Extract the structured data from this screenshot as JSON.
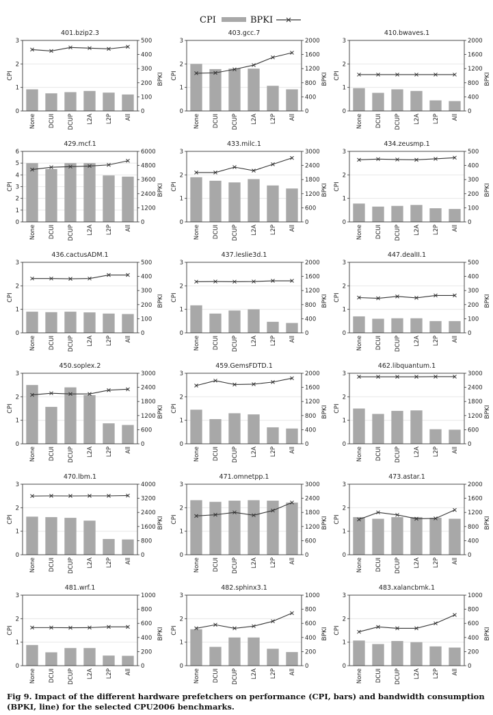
{
  "legend": {
    "cpi_label": "CPI",
    "bpki_label": "BPKI",
    "bar_color": "#a8a8a8",
    "line_color": "#333333"
  },
  "caption": {
    "label": "Fig 9.",
    "text": "Impact of the different hardware prefetchers on performance (CPI, bars) and bandwidth consumption (BPKI, line) for the selected CPU2006 benchmarks."
  },
  "chart_data": [
    {
      "type": "bar+line",
      "title": "401.bzip2.3",
      "categories": [
        "None",
        "DCUI",
        "DCUP",
        "L2A",
        "L2P",
        "All"
      ],
      "ylabel": "CPI",
      "y2label": "BPKI",
      "ylim": [
        0,
        3
      ],
      "y2lim": [
        0,
        500
      ],
      "yticks": [
        "0",
        "1",
        "2",
        "3"
      ],
      "y2ticks": [
        "0",
        "100",
        "200",
        "300",
        "400",
        "500"
      ],
      "series": [
        {
          "name": "CPI",
          "values": [
            0.92,
            0.75,
            0.8,
            0.85,
            0.78,
            0.7
          ]
        },
        {
          "name": "BPKI",
          "values": [
            435,
            425,
            450,
            445,
            440,
            455
          ]
        }
      ]
    },
    {
      "type": "bar+line",
      "title": "403.gcc.7",
      "categories": [
        "None",
        "DCUI",
        "DCUP",
        "L2A",
        "L2P",
        "All"
      ],
      "ylabel": "CPI",
      "y2label": "BPKI",
      "ylim": [
        0,
        3
      ],
      "y2lim": [
        0,
        2000
      ],
      "yticks": [
        "0",
        "1",
        "2",
        "3"
      ],
      "y2ticks": [
        "0",
        "400",
        "800",
        "1200",
        "1600",
        "2000"
      ],
      "series": [
        {
          "name": "CPI",
          "values": [
            2.0,
            1.78,
            1.8,
            1.8,
            1.07,
            0.92
          ]
        },
        {
          "name": "BPKI",
          "values": [
            1070,
            1080,
            1180,
            1300,
            1520,
            1650
          ]
        }
      ]
    },
    {
      "type": "bar+line",
      "title": "410.bwaves.1",
      "categories": [
        "None",
        "DCUI",
        "DCUP",
        "L2A",
        "L2P",
        "All"
      ],
      "ylabel": "CPI",
      "y2label": "BPKI",
      "ylim": [
        0,
        3
      ],
      "y2lim": [
        0,
        2000
      ],
      "yticks": [
        "0",
        "1",
        "2",
        "3"
      ],
      "y2ticks": [
        "0",
        "400",
        "800",
        "1200",
        "1600",
        "2000"
      ],
      "series": [
        {
          "name": "CPI",
          "values": [
            0.97,
            0.77,
            0.92,
            0.85,
            0.45,
            0.42
          ]
        },
        {
          "name": "BPKI",
          "values": [
            1030,
            1030,
            1030,
            1030,
            1030,
            1030
          ]
        }
      ]
    },
    {
      "type": "bar+line",
      "title": "429.mcf.1",
      "categories": [
        "None",
        "DCUI",
        "DCUP",
        "L2A",
        "L2P",
        "All"
      ],
      "ylabel": "CPI",
      "y2label": "BPKI",
      "ylim": [
        0,
        6
      ],
      "y2lim": [
        0,
        6000
      ],
      "yticks": [
        "0",
        "1",
        "2",
        "3",
        "4",
        "5",
        "6"
      ],
      "y2ticks": [
        "0",
        "1200",
        "2400",
        "3600",
        "4800",
        "6000"
      ],
      "series": [
        {
          "name": "CPI",
          "values": [
            5.0,
            4.5,
            5.0,
            5.0,
            3.95,
            3.85
          ]
        },
        {
          "name": "BPKI",
          "values": [
            4450,
            4650,
            4700,
            4750,
            4850,
            5200
          ]
        }
      ]
    },
    {
      "type": "bar+line",
      "title": "433.milc.1",
      "categories": [
        "None",
        "DCUI",
        "DCUP",
        "L2A",
        "L2P",
        "All"
      ],
      "ylabel": "CPI",
      "y2label": "BPKI",
      "ylim": [
        0,
        3
      ],
      "y2lim": [
        0,
        3000
      ],
      "yticks": [
        "0",
        "1",
        "2",
        "3"
      ],
      "y2ticks": [
        "0",
        "600",
        "1200",
        "1800",
        "2400",
        "3000"
      ],
      "series": [
        {
          "name": "CPI",
          "values": [
            1.9,
            1.75,
            1.68,
            1.82,
            1.55,
            1.42
          ]
        },
        {
          "name": "BPKI",
          "values": [
            2100,
            2100,
            2330,
            2180,
            2450,
            2720
          ]
        }
      ]
    },
    {
      "type": "bar+line",
      "title": "434.zeusmp.1",
      "categories": [
        "None",
        "DCUI",
        "DCUP",
        "L2A",
        "L2P",
        "All"
      ],
      "ylabel": "CPI",
      "y2label": "BPKI",
      "ylim": [
        0,
        3
      ],
      "y2lim": [
        0,
        500
      ],
      "yticks": [
        "0",
        "1",
        "2",
        "3"
      ],
      "y2ticks": [
        "0",
        "100",
        "200",
        "300",
        "400",
        "500"
      ],
      "series": [
        {
          "name": "CPI",
          "values": [
            0.78,
            0.65,
            0.68,
            0.72,
            0.58,
            0.55
          ]
        },
        {
          "name": "BPKI",
          "values": [
            440,
            445,
            442,
            440,
            447,
            455
          ]
        }
      ]
    },
    {
      "type": "bar+line",
      "title": "436.cactusADM.1",
      "categories": [
        "None",
        "DCUI",
        "DCUP",
        "L2A",
        "L2P",
        "All"
      ],
      "ylabel": "CPI",
      "y2label": "BPKI",
      "ylim": [
        0,
        3
      ],
      "y2lim": [
        0,
        500
      ],
      "yticks": [
        "0",
        "1",
        "2",
        "3"
      ],
      "y2ticks": [
        "0",
        "100",
        "200",
        "300",
        "400",
        "500"
      ],
      "series": [
        {
          "name": "CPI",
          "values": [
            0.9,
            0.88,
            0.9,
            0.87,
            0.82,
            0.8
          ]
        },
        {
          "name": "BPKI",
          "values": [
            385,
            385,
            383,
            385,
            410,
            410
          ]
        }
      ]
    },
    {
      "type": "bar+line",
      "title": "437.leslie3d.1",
      "categories": [
        "None",
        "DCUI",
        "DCUP",
        "L2A",
        "L2P",
        "All"
      ],
      "ylabel": "CPI",
      "y2label": "BPKI",
      "ylim": [
        0,
        3
      ],
      "y2lim": [
        0,
        2000
      ],
      "yticks": [
        "0",
        "1",
        "2",
        "3"
      ],
      "y2ticks": [
        "0",
        "400",
        "800",
        "1200",
        "1600",
        "2000"
      ],
      "series": [
        {
          "name": "CPI",
          "values": [
            1.17,
            0.82,
            0.95,
            1.0,
            0.47,
            0.42
          ]
        },
        {
          "name": "BPKI",
          "values": [
            1450,
            1455,
            1450,
            1455,
            1475,
            1475
          ]
        }
      ]
    },
    {
      "type": "bar+line",
      "title": "447.dealII.1",
      "categories": [
        "None",
        "DCUI",
        "DCUP",
        "L2A",
        "L2P",
        "All"
      ],
      "ylabel": "CPI",
      "y2label": "BPKI",
      "ylim": [
        0,
        3
      ],
      "y2lim": [
        0,
        500
      ],
      "yticks": [
        "0",
        "1",
        "2",
        "3"
      ],
      "y2ticks": [
        "0",
        "100",
        "200",
        "300",
        "400",
        "500"
      ],
      "series": [
        {
          "name": "CPI",
          "values": [
            0.7,
            0.6,
            0.62,
            0.62,
            0.5,
            0.5
          ]
        },
        {
          "name": "BPKI",
          "values": [
            250,
            245,
            258,
            248,
            265,
            265
          ]
        }
      ]
    },
    {
      "type": "bar+line",
      "title": "450.soplex.2",
      "categories": [
        "None",
        "DCUI",
        "DCUP",
        "L2A",
        "L2P",
        "All"
      ],
      "ylabel": "CPI",
      "y2label": "BPKI",
      "ylim": [
        0,
        3
      ],
      "y2lim": [
        0,
        3000
      ],
      "yticks": [
        "0",
        "1",
        "2",
        "3"
      ],
      "y2ticks": [
        "0",
        "600",
        "1200",
        "1800",
        "2400",
        "3000"
      ],
      "series": [
        {
          "name": "CPI",
          "values": [
            2.5,
            1.57,
            2.4,
            2.07,
            0.87,
            0.8
          ]
        },
        {
          "name": "BPKI",
          "values": [
            2080,
            2150,
            2120,
            2120,
            2280,
            2320
          ]
        }
      ]
    },
    {
      "type": "bar+line",
      "title": "459.GemsFDTD.1",
      "categories": [
        "None",
        "DCUI",
        "DCUP",
        "L2A",
        "L2P",
        "All"
      ],
      "ylabel": "CPI",
      "y2label": "BPKI",
      "ylim": [
        0,
        3
      ],
      "y2lim": [
        0,
        2000
      ],
      "yticks": [
        "0",
        "1",
        "2",
        "3"
      ],
      "y2ticks": [
        "0",
        "400",
        "800",
        "1200",
        "1600",
        "2000"
      ],
      "series": [
        {
          "name": "CPI",
          "values": [
            1.45,
            1.05,
            1.3,
            1.25,
            0.7,
            0.65
          ]
        },
        {
          "name": "BPKI",
          "values": [
            1650,
            1790,
            1680,
            1690,
            1750,
            1860
          ]
        }
      ]
    },
    {
      "type": "bar+line",
      "title": "462.libquantum.1",
      "categories": [
        "None",
        "DCUI",
        "DCUP",
        "L2A",
        "L2P",
        "All"
      ],
      "ylabel": "CPI",
      "y2label": "BPKI",
      "ylim": [
        0,
        3
      ],
      "y2lim": [
        0,
        3000
      ],
      "yticks": [
        "0",
        "1",
        "2",
        "3"
      ],
      "y2ticks": [
        "0",
        "600",
        "1200",
        "1800",
        "2400",
        "3000"
      ],
      "series": [
        {
          "name": "CPI",
          "values": [
            1.5,
            1.27,
            1.4,
            1.42,
            0.62,
            0.6
          ]
        },
        {
          "name": "BPKI",
          "values": [
            2850,
            2850,
            2850,
            2850,
            2855,
            2855
          ]
        }
      ]
    },
    {
      "type": "bar+line",
      "title": "470.lbm.1",
      "categories": [
        "None",
        "DCUI",
        "DCUP",
        "L2A",
        "L2P",
        "All"
      ],
      "ylabel": "CPI",
      "y2label": "BPKI",
      "ylim": [
        0,
        3
      ],
      "y2lim": [
        0,
        4000
      ],
      "yticks": [
        "0",
        "1",
        "2",
        "3"
      ],
      "y2ticks": [
        "0",
        "800",
        "1600",
        "2400",
        "3200",
        "4000"
      ],
      "series": [
        {
          "name": "CPI",
          "values": [
            1.62,
            1.6,
            1.57,
            1.45,
            0.67,
            0.65
          ]
        },
        {
          "name": "BPKI",
          "values": [
            3330,
            3340,
            3335,
            3340,
            3340,
            3355
          ]
        }
      ]
    },
    {
      "type": "bar+line",
      "title": "471.omnetpp.1",
      "categories": [
        "None",
        "DCUI",
        "DCUP",
        "L2A",
        "L2P",
        "All"
      ],
      "ylabel": "CPI",
      "y2label": "BPKI",
      "ylim": [
        0,
        3
      ],
      "y2lim": [
        0,
        3000
      ],
      "yticks": [
        "0",
        "1",
        "2",
        "3"
      ],
      "y2ticks": [
        "0",
        "600",
        "1200",
        "1800",
        "2400",
        "3000"
      ],
      "series": [
        {
          "name": "CPI",
          "values": [
            2.32,
            2.25,
            2.3,
            2.32,
            2.3,
            2.22
          ]
        },
        {
          "name": "BPKI",
          "values": [
            1650,
            1700,
            1800,
            1680,
            1880,
            2220
          ]
        }
      ]
    },
    {
      "type": "bar+line",
      "title": "473.astar.1",
      "categories": [
        "None",
        "DCUI",
        "DCUP",
        "L2A",
        "L2P",
        "All"
      ],
      "ylabel": "CPI",
      "y2label": "BPKI",
      "ylim": [
        0,
        3
      ],
      "y2lim": [
        0,
        2000
      ],
      "yticks": [
        "0",
        "1",
        "2",
        "3"
      ],
      "y2ticks": [
        "0",
        "400",
        "800",
        "1200",
        "1600",
        "2000"
      ],
      "series": [
        {
          "name": "CPI",
          "values": [
            1.6,
            1.53,
            1.6,
            1.6,
            1.57,
            1.53
          ]
        },
        {
          "name": "BPKI",
          "values": [
            1000,
            1200,
            1130,
            1020,
            1030,
            1270
          ]
        }
      ]
    },
    {
      "type": "bar+line",
      "title": "481.wrf.1",
      "categories": [
        "None",
        "DCUI",
        "DCUP",
        "L2A",
        "L2P",
        "All"
      ],
      "ylabel": "CPI",
      "y2label": "BPKI",
      "ylim": [
        0,
        3
      ],
      "y2lim": [
        0,
        1000
      ],
      "yticks": [
        "0",
        "1",
        "2",
        "3"
      ],
      "y2ticks": [
        "0",
        "200",
        "400",
        "600",
        "800",
        "1000"
      ],
      "series": [
        {
          "name": "CPI",
          "values": [
            0.88,
            0.57,
            0.75,
            0.75,
            0.43,
            0.42
          ]
        },
        {
          "name": "BPKI",
          "values": [
            540,
            540,
            538,
            540,
            550,
            550
          ]
        }
      ]
    },
    {
      "type": "bar+line",
      "title": "482.sphinx3.1",
      "categories": [
        "None",
        "DCUI",
        "DCUP",
        "L2A",
        "L2P",
        "All"
      ],
      "ylabel": "CPI",
      "y2label": "BPKI",
      "ylim": [
        0,
        3
      ],
      "y2lim": [
        0,
        1000
      ],
      "yticks": [
        "0",
        "1",
        "2",
        "3"
      ],
      "y2ticks": [
        "0",
        "200",
        "400",
        "600",
        "800",
        "1000"
      ],
      "series": [
        {
          "name": "CPI",
          "values": [
            1.55,
            0.8,
            1.2,
            1.2,
            0.72,
            0.58
          ]
        },
        {
          "name": "BPKI",
          "values": [
            530,
            580,
            530,
            560,
            630,
            745
          ]
        }
      ]
    },
    {
      "type": "bar+line",
      "title": "483.xalancbmk.1",
      "categories": [
        "None",
        "DCUI",
        "DCUP",
        "L2A",
        "L2P",
        "All"
      ],
      "ylabel": "CPI",
      "y2label": "BPKI",
      "ylim": [
        0,
        3
      ],
      "y2lim": [
        0,
        1000
      ],
      "yticks": [
        "0",
        "1",
        "2",
        "3"
      ],
      "y2ticks": [
        "0",
        "200",
        "400",
        "600",
        "800",
        "1000"
      ],
      "series": [
        {
          "name": "CPI",
          "values": [
            1.07,
            0.92,
            1.05,
            1.0,
            0.82,
            0.77
          ]
        },
        {
          "name": "BPKI",
          "values": [
            480,
            550,
            530,
            530,
            600,
            720
          ]
        }
      ]
    }
  ]
}
